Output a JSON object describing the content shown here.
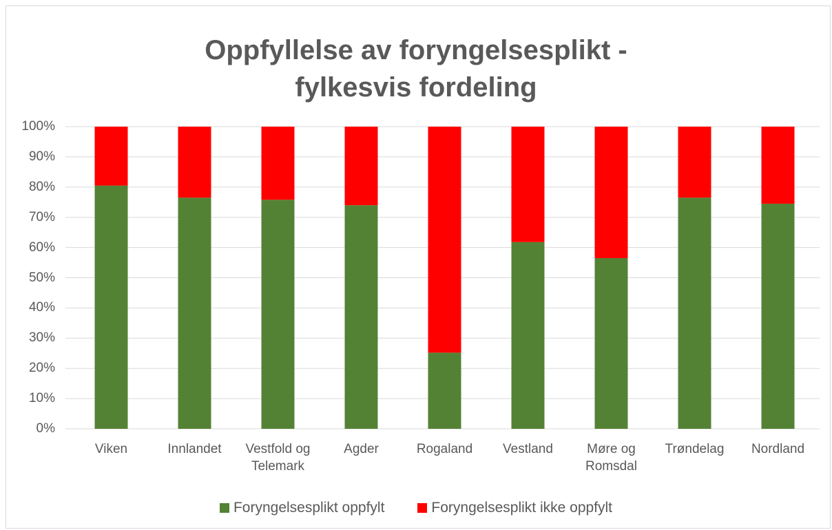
{
  "chart_data": {
    "type": "stacked_bar",
    "title": "Oppfyllelse av foryngelsesplikt - fylkesvis fordeling",
    "categories": [
      "Viken",
      "Innlandet",
      "Vestfold og Telemark",
      "Agder",
      "Rogaland",
      "Vestland",
      "Møre og Romsdal",
      "Trøndelag",
      "Nordland"
    ],
    "series": [
      {
        "name": "Foryngelsesplikt oppfylt",
        "color": "#548235",
        "values": [
          80.5,
          76.5,
          75.8,
          74,
          25.2,
          61.8,
          56.5,
          76.5,
          74.5
        ]
      },
      {
        "name": "Foryngelsesplikt ikke oppfylt",
        "color": "#ff0000",
        "values": [
          19.5,
          23.5,
          24.2,
          26,
          74.8,
          38.2,
          43.5,
          23.5,
          25.5
        ]
      }
    ],
    "ylim": [
      0,
      100
    ],
    "yticks": [
      {
        "value": 0,
        "label": "0%"
      },
      {
        "value": 10,
        "label": "10%"
      },
      {
        "value": 20,
        "label": "20%"
      },
      {
        "value": 30,
        "label": "30%"
      },
      {
        "value": 40,
        "label": "40%"
      },
      {
        "value": 50,
        "label": "50%"
      },
      {
        "value": 60,
        "label": "60%"
      },
      {
        "value": 70,
        "label": "70%"
      },
      {
        "value": 80,
        "label": "80%"
      },
      {
        "value": 90,
        "label": "90%"
      },
      {
        "value": 100,
        "label": "100%"
      }
    ],
    "grid": true,
    "legend": "bottom"
  }
}
